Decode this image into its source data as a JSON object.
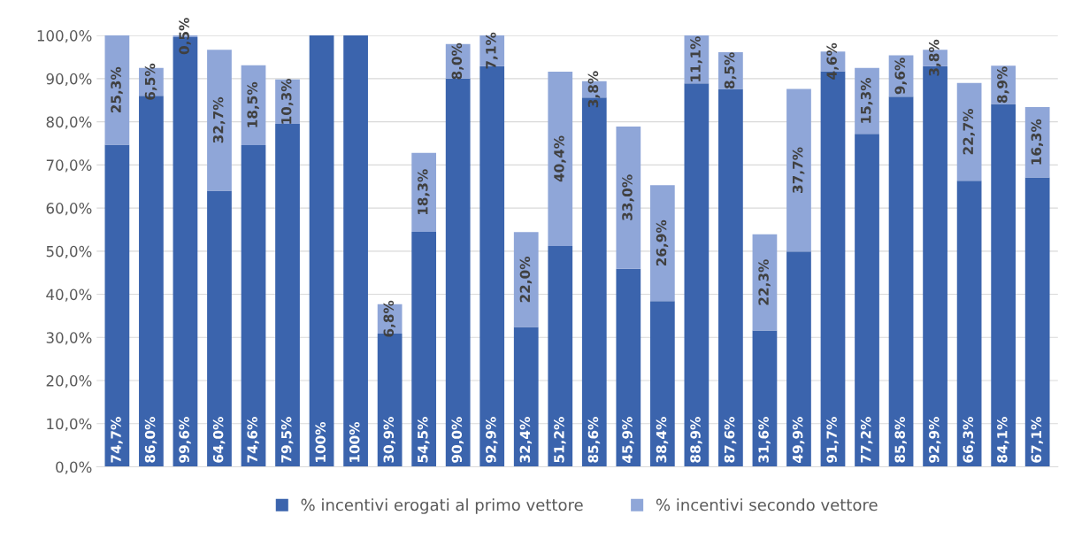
{
  "chart_data": {
    "type": "bar",
    "stacked": true,
    "grid": "y",
    "legend": "bottom",
    "categories": [
      null,
      null,
      null,
      null,
      null,
      null,
      null,
      null,
      null,
      null,
      null,
      null,
      null,
      null,
      null,
      null,
      null,
      null,
      null,
      null,
      null,
      null,
      null,
      null,
      null,
      null,
      null,
      null
    ],
    "ylim": [
      0,
      100
    ],
    "yticks": [
      {
        "value": 0,
        "label": "0,0%"
      },
      {
        "value": 10,
        "label": "10,0%"
      },
      {
        "value": 20,
        "label": "20,0%"
      },
      {
        "value": 30,
        "label": "30,0%"
      },
      {
        "value": 40,
        "label": "40,0%"
      },
      {
        "value": 50,
        "label": "50,0%"
      },
      {
        "value": 60,
        "label": "60,0%"
      },
      {
        "value": 70,
        "label": "70,0%"
      },
      {
        "value": 80,
        "label": "80,0%"
      },
      {
        "value": 90,
        "label": "90,0%"
      },
      {
        "value": 100,
        "label": "100,0%"
      }
    ],
    "series": [
      {
        "name": "% incentivi erogati al primo vettore",
        "color": "#3b64ad",
        "values": [
          74.7,
          86.0,
          99.6,
          64.0,
          74.6,
          79.5,
          100,
          100,
          30.9,
          54.5,
          90.0,
          92.9,
          32.4,
          51.2,
          85.6,
          45.9,
          38.4,
          88.9,
          87.6,
          31.6,
          49.9,
          91.7,
          77.2,
          85.8,
          92.9,
          66.3,
          84.1,
          67.1
        ],
        "value_labels": [
          "74,7%",
          "86,0%",
          "99,6%",
          "64,0%",
          "74,6%",
          "79,5%",
          "100%",
          "100%",
          "30,9%",
          "54,5%",
          "90,0%",
          "92,9%",
          "32,4%",
          "51,2%",
          "85,6%",
          "45,9%",
          "38,4%",
          "88,9%",
          "87,6%",
          "31,6%",
          "49,9%",
          "91,7%",
          "77,2%",
          "85,8%",
          "92,9%",
          "66,3%",
          "84,1%",
          "67,1%"
        ]
      },
      {
        "name": "% incentivi secondo vettore",
        "color": "#8fa6d8",
        "values": [
          25.3,
          6.5,
          0.5,
          32.7,
          18.5,
          10.3,
          null,
          null,
          6.8,
          18.3,
          8.0,
          7.1,
          22.0,
          40.4,
          3.8,
          33.0,
          26.9,
          11.1,
          8.5,
          22.3,
          37.7,
          4.6,
          15.3,
          9.6,
          3.8,
          22.7,
          8.9,
          16.3
        ],
        "value_labels": [
          "25,3%",
          "6,5%",
          "0,5%",
          "32,7%",
          "18,5%",
          "10,3%",
          null,
          null,
          "6,8%",
          "18,3%",
          "8,0%",
          "7,1%",
          "22,0%",
          "40,4%",
          "3,8%",
          "33,0%",
          "26,9%",
          "11,1%",
          "8,5%",
          "22,3%",
          "37,7%",
          "4,6%",
          "15,3%",
          "9,6%",
          "3,8%",
          "22,7%",
          "8,9%",
          "16,3%"
        ]
      }
    ]
  }
}
